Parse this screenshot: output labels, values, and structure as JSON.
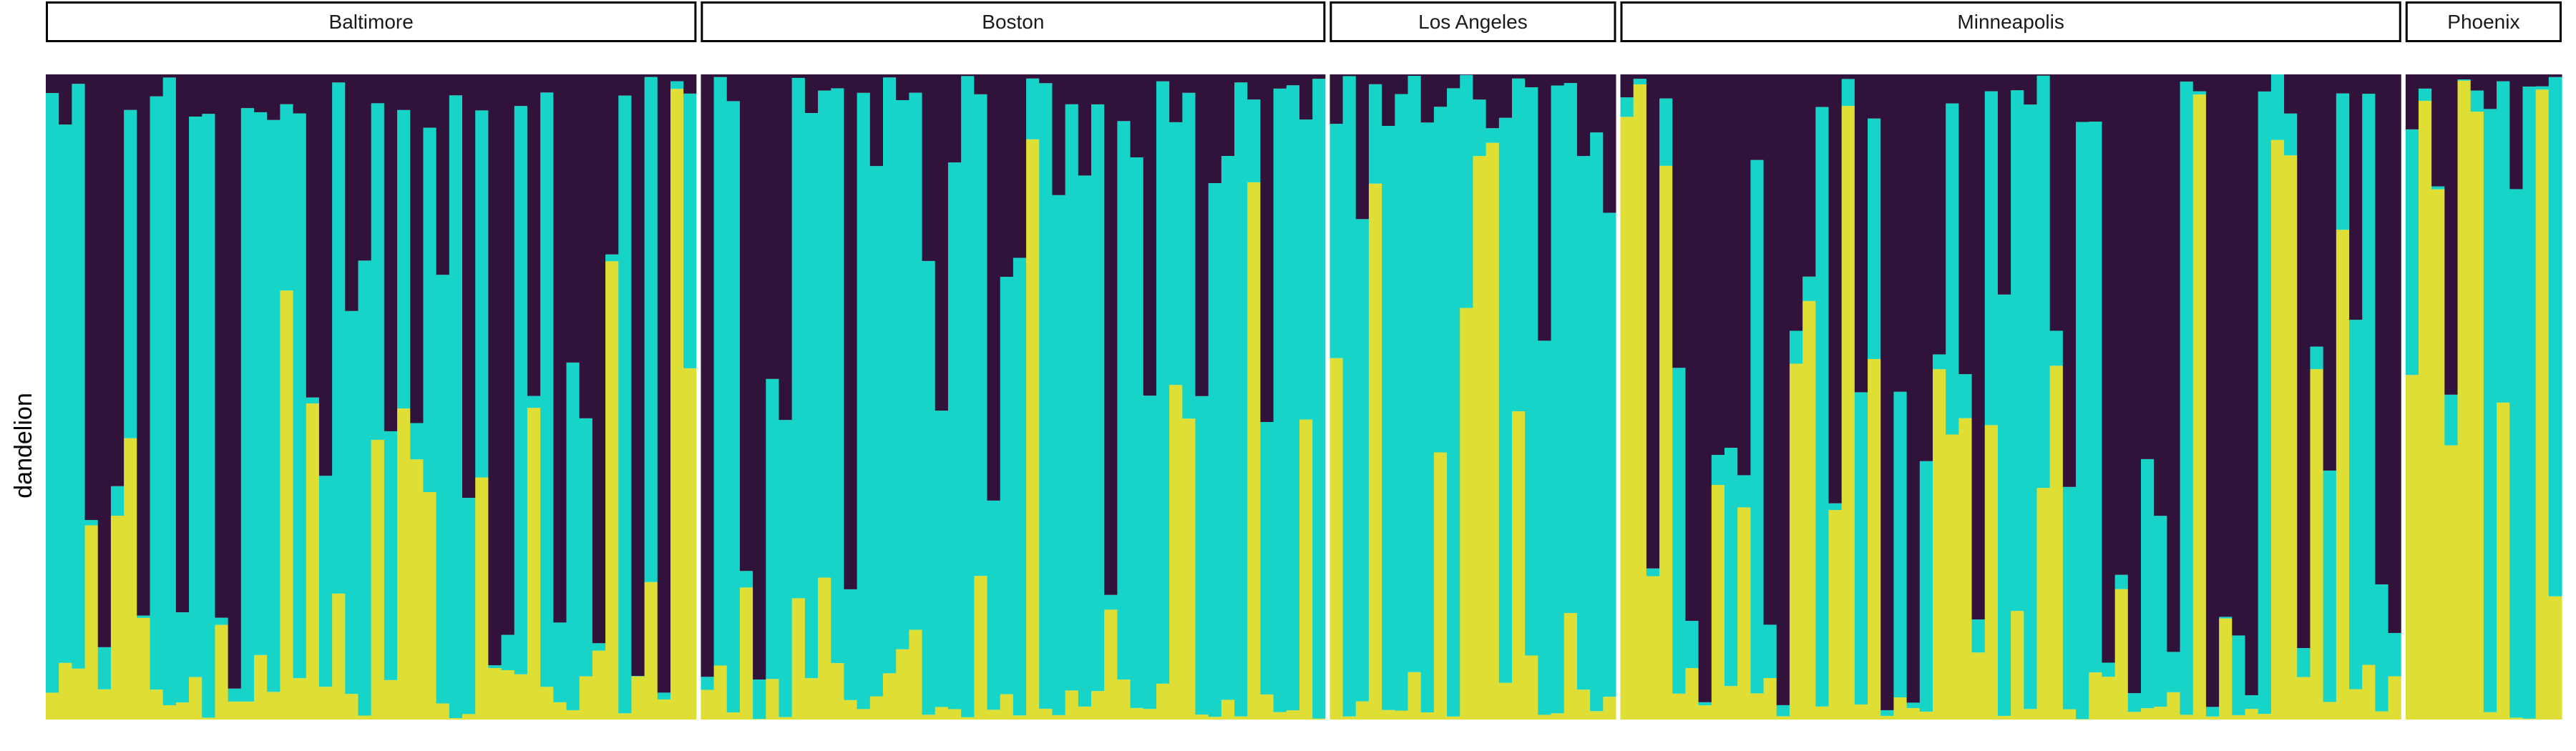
{
  "chart_data": {
    "type": "bar",
    "stacked": true,
    "normalized": true,
    "ylabel": "dandelion",
    "xlabel": "",
    "title": "",
    "ylim": [
      0,
      1
    ],
    "grid": false,
    "legend": "none",
    "colors": [
      "#31123b",
      "#17d4c8",
      "#dede35"
    ],
    "separator_color": "#ffffff",
    "strip_border_color": "#000000",
    "panels": [
      {
        "name": "Baltimore",
        "n": 50,
        "seed": 11,
        "p": [
          0.48,
          0.4,
          0.12
        ]
      },
      {
        "name": "Boston",
        "n": 48,
        "seed": 23,
        "p": [
          0.17,
          0.75,
          0.08
        ]
      },
      {
        "name": "Los Angeles",
        "n": 22,
        "seed": 37,
        "p": [
          0.1,
          0.7,
          0.2
        ]
      },
      {
        "name": "Minneapolis",
        "n": 60,
        "seed": 41,
        "p": [
          0.52,
          0.33,
          0.15
        ]
      },
      {
        "name": "Phoenix",
        "n": 12,
        "seed": 53,
        "p": [
          0.04,
          0.18,
          0.78
        ]
      }
    ]
  }
}
